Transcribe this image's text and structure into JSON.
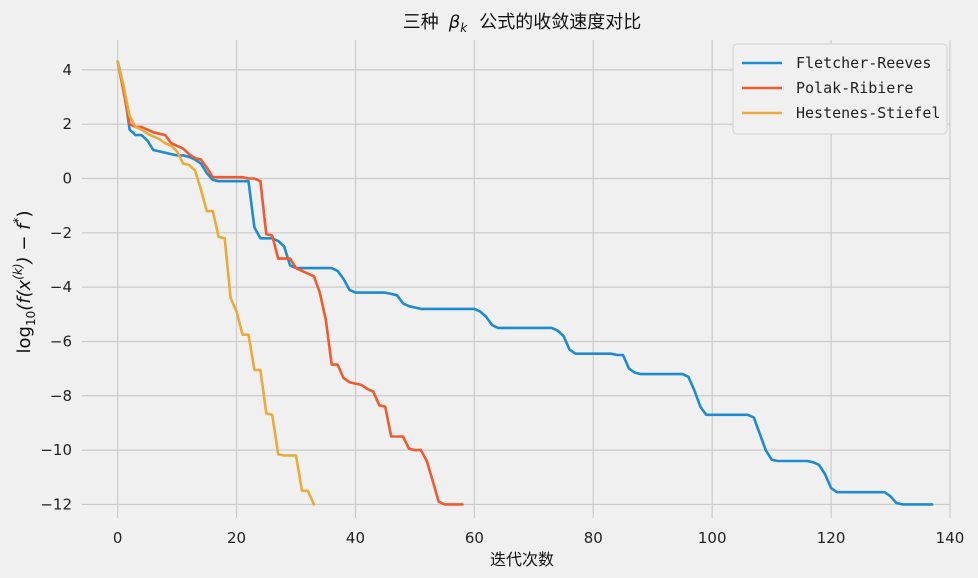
{
  "chart_data": {
    "type": "line",
    "title": "三种 βk 公式的收敛速度对比",
    "title_main": "三种",
    "title_symbol": "β",
    "title_subscript": "k",
    "title_tail": "公式的收敛速度对比",
    "xlabel": "迭代次数",
    "ylabel_parts": {
      "log": "log",
      "log_sub": "10",
      "body": "(f(x",
      "k_sup": "(k)",
      "mid": ") − f",
      "star_sup": "*",
      "end": ")"
    },
    "xlim": [
      -6,
      140
    ],
    "ylim": [
      -12.5,
      5.1
    ],
    "xticks": [
      0,
      20,
      40,
      60,
      80,
      100,
      120,
      140
    ],
    "yticks": [
      -12,
      -10,
      -8,
      -6,
      -4,
      -2,
      0,
      2,
      4
    ],
    "grid": true,
    "legend_position": "top-right",
    "series": [
      {
        "name": "Fletcher-Reeves",
        "color": "#1f8bcf",
        "x": [
          0,
          1,
          2,
          3,
          4,
          5,
          6,
          7,
          8,
          9,
          10,
          11,
          12,
          13,
          14,
          15,
          16,
          17,
          18,
          19,
          20,
          21,
          22,
          23,
          24,
          25,
          26,
          27,
          28,
          29,
          30,
          31,
          32,
          33,
          34,
          35,
          36,
          37,
          38,
          39,
          40,
          41,
          42,
          43,
          44,
          45,
          46,
          47,
          48,
          49,
          50,
          51,
          52,
          53,
          54,
          55,
          56,
          57,
          58,
          59,
          60,
          61,
          62,
          63,
          64,
          65,
          66,
          67,
          68,
          69,
          70,
          71,
          72,
          73,
          74,
          75,
          76,
          77,
          78,
          79,
          80,
          81,
          82,
          83,
          84,
          85,
          86,
          87,
          88,
          89,
          90,
          91,
          92,
          93,
          94,
          95,
          96,
          97,
          98,
          99,
          100,
          101,
          102,
          103,
          104,
          105,
          106,
          107,
          108,
          109,
          110,
          111,
          112,
          113,
          114,
          115,
          116,
          117,
          118,
          119,
          120,
          121,
          122,
          123,
          124,
          125,
          126,
          127,
          128,
          129,
          130,
          131,
          132,
          133,
          134,
          135,
          136,
          137
        ],
        "y": [
          4.3,
          3.4,
          1.8,
          1.6,
          1.6,
          1.4,
          1.05,
          1.0,
          0.95,
          0.9,
          0.85,
          0.85,
          0.8,
          0.7,
          0.55,
          0.2,
          -0.05,
          -0.1,
          -0.1,
          -0.1,
          -0.1,
          -0.1,
          -0.1,
          -1.8,
          -2.2,
          -2.2,
          -2.2,
          -2.3,
          -2.5,
          -3.2,
          -3.3,
          -3.3,
          -3.3,
          -3.3,
          -3.3,
          -3.3,
          -3.3,
          -3.4,
          -3.7,
          -4.1,
          -4.2,
          -4.2,
          -4.2,
          -4.2,
          -4.2,
          -4.2,
          -4.25,
          -4.3,
          -4.6,
          -4.7,
          -4.75,
          -4.8,
          -4.8,
          -4.8,
          -4.8,
          -4.8,
          -4.8,
          -4.8,
          -4.8,
          -4.8,
          -4.8,
          -4.9,
          -5.1,
          -5.4,
          -5.5,
          -5.5,
          -5.5,
          -5.5,
          -5.5,
          -5.5,
          -5.5,
          -5.5,
          -5.5,
          -5.5,
          -5.6,
          -5.8,
          -6.3,
          -6.45,
          -6.45,
          -6.45,
          -6.45,
          -6.45,
          -6.45,
          -6.45,
          -6.5,
          -6.5,
          -7.0,
          -7.15,
          -7.2,
          -7.2,
          -7.2,
          -7.2,
          -7.2,
          -7.2,
          -7.2,
          -7.2,
          -7.3,
          -7.8,
          -8.4,
          -8.7,
          -8.7,
          -8.7,
          -8.7,
          -8.7,
          -8.7,
          -8.7,
          -8.7,
          -8.8,
          -9.4,
          -10.0,
          -10.35,
          -10.4,
          -10.4,
          -10.4,
          -10.4,
          -10.4,
          -10.4,
          -10.45,
          -10.55,
          -10.9,
          -11.4,
          -11.55,
          -11.55,
          -11.55,
          -11.55,
          -11.55,
          -11.55,
          -11.55,
          -11.55,
          -11.55,
          -11.7,
          -11.95,
          -12.0,
          -12.0,
          -12.0,
          -12.0,
          -12.0,
          -12.0
        ]
      },
      {
        "name": "Polak-Ribiere",
        "color": "#f05a2f",
        "x": [
          0,
          1,
          2,
          3,
          4,
          5,
          6,
          7,
          8,
          9,
          10,
          11,
          12,
          13,
          14,
          15,
          16,
          17,
          18,
          19,
          20,
          21,
          22,
          23,
          24,
          25,
          26,
          27,
          28,
          29,
          30,
          31,
          32,
          33,
          34,
          35,
          36,
          37,
          38,
          39,
          40,
          41,
          42,
          43,
          44,
          45,
          46,
          47,
          48,
          49,
          50,
          51,
          52,
          53,
          54,
          55,
          56,
          57,
          58
        ],
        "y": [
          4.3,
          3.2,
          2.0,
          1.9,
          1.9,
          1.8,
          1.7,
          1.65,
          1.6,
          1.3,
          1.2,
          1.1,
          0.9,
          0.75,
          0.7,
          0.4,
          0.05,
          0.05,
          0.05,
          0.05,
          0.05,
          0.05,
          0.0,
          0.0,
          -0.1,
          -2.05,
          -2.1,
          -2.95,
          -2.95,
          -2.95,
          -3.3,
          -3.4,
          -3.5,
          -3.6,
          -4.2,
          -5.2,
          -6.85,
          -6.85,
          -7.35,
          -7.5,
          -7.55,
          -7.6,
          -7.75,
          -7.85,
          -8.35,
          -8.4,
          -9.5,
          -9.5,
          -9.5,
          -9.95,
          -10.0,
          -10.0,
          -10.4,
          -11.15,
          -11.9,
          -12.0,
          -12.0,
          -12.0,
          -12.0
        ]
      },
      {
        "name": "Hestenes-Stiefel",
        "color": "#e8ac3c",
        "x": [
          0,
          1,
          2,
          3,
          4,
          5,
          6,
          7,
          8,
          9,
          10,
          11,
          12,
          13,
          14,
          15,
          16,
          17,
          18,
          19,
          20,
          21,
          22,
          23,
          24,
          25,
          26,
          27,
          28,
          29,
          30,
          31,
          32,
          33
        ],
        "y": [
          4.3,
          3.4,
          2.3,
          1.9,
          1.8,
          1.65,
          1.55,
          1.45,
          1.3,
          1.2,
          1.0,
          0.55,
          0.5,
          0.3,
          -0.4,
          -1.2,
          -1.2,
          -2.15,
          -2.2,
          -4.4,
          -4.9,
          -5.75,
          -5.75,
          -7.05,
          -7.05,
          -8.65,
          -8.7,
          -10.15,
          -10.2,
          -10.2,
          -10.2,
          -11.5,
          -11.5,
          -12.0
        ]
      }
    ]
  }
}
